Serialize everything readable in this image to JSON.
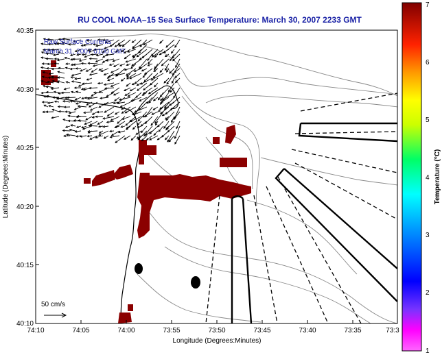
{
  "title": "RU COOL  NOAA–15  Sea Surface Temperature:  March 30, 2007 2233 GMT",
  "legend": {
    "line1": "Raw Surface Currents",
    "line2": "March 31, 2007 0100 GMT",
    "scale_label": "50 cm/s"
  },
  "axes": {
    "xlabel": "Longitude (Degrees:Minutes)",
    "ylabel": "Latitude (Degrees:Minutes)",
    "xticks": [
      "74:10",
      "74:05",
      "74:00",
      "73:55",
      "73:50",
      "73:45",
      "73:40",
      "73:35",
      "73:3"
    ],
    "yticks": [
      "40:35",
      "40:30",
      "40:25",
      "40:20",
      "40:15",
      "40:10"
    ]
  },
  "colorbar": {
    "label": "Temperature (°C)",
    "ticks": [
      "7",
      "6",
      "5",
      "4",
      "3",
      "2",
      "1"
    ],
    "range": [
      1,
      7
    ],
    "colors": [
      "#ff66ff",
      "#0000ff",
      "#00ffff",
      "#ffff00",
      "#ff9900",
      "#ff0000",
      "#800000"
    ]
  },
  "colors": {
    "sst_patch": "#8b0000",
    "title": "#1a22a6",
    "legend_text": "#1a22a6"
  }
}
